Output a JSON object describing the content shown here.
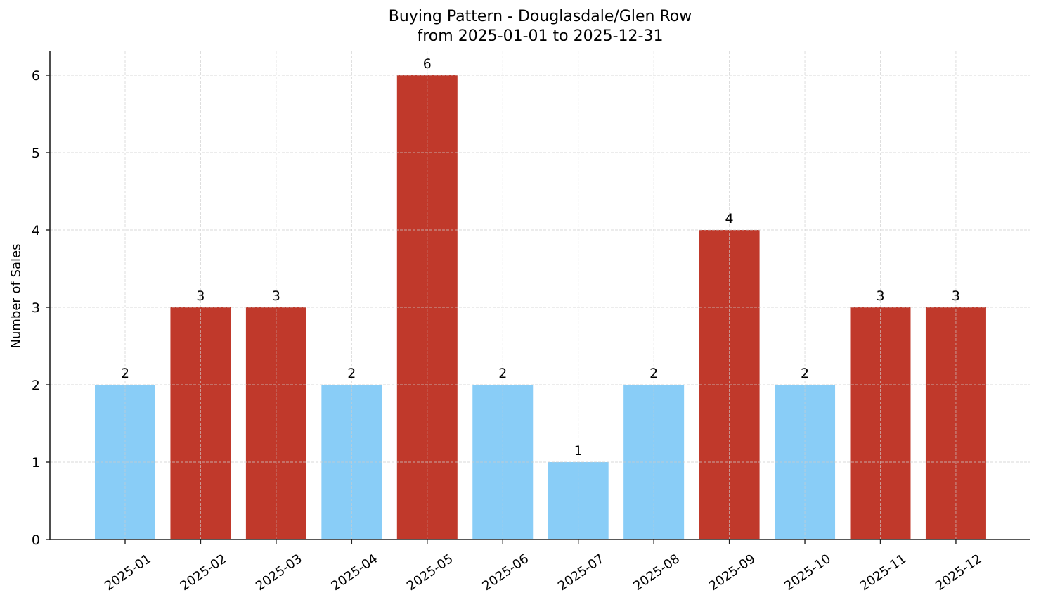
{
  "chart_data": {
    "type": "bar",
    "title": "Buying Pattern - Douglasdale/Glen Row",
    "subtitle": "from 2025-01-01 to 2025-12-31",
    "xlabel": "",
    "ylabel": "Number of Sales",
    "categories": [
      "2025-01",
      "2025-02",
      "2025-03",
      "2025-04",
      "2025-05",
      "2025-06",
      "2025-07",
      "2025-08",
      "2025-09",
      "2025-10",
      "2025-11",
      "2025-12"
    ],
    "values": [
      2,
      3,
      3,
      2,
      6,
      2,
      1,
      2,
      4,
      2,
      3,
      3
    ],
    "bar_colors": [
      "#89CDF7",
      "#C0392B",
      "#C0392B",
      "#89CDF7",
      "#C0392B",
      "#89CDF7",
      "#89CDF7",
      "#89CDF7",
      "#C0392B",
      "#89CDF7",
      "#C0392B",
      "#C0392B"
    ],
    "color_legend": {
      "low": "#89CDF7",
      "high": "#C0392B"
    },
    "data_labels": [
      "2",
      "3",
      "3",
      "2",
      "6",
      "2",
      "1",
      "2",
      "4",
      "2",
      "3",
      "3"
    ],
    "yticks": [
      0,
      1,
      2,
      3,
      4,
      5,
      6
    ],
    "ylim": [
      0,
      6.3
    ],
    "grid": true,
    "legend": "none",
    "xtick_rotation": 35
  },
  "colors": {
    "axis": "#222222",
    "grid": "#cccccc",
    "text": "#000000"
  }
}
